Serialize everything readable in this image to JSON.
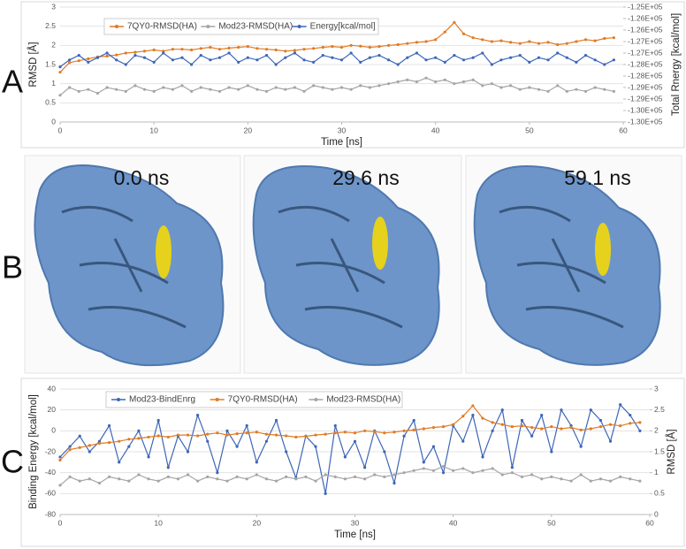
{
  "panel_labels": [
    "A",
    "B",
    "C"
  ],
  "snapshots": [
    "0.0 ns",
    "29.6 ns",
    "59.1 ns"
  ],
  "chart_data": [
    {
      "type": "line",
      "xlabel": "Time [ns]",
      "ylabel": "RMSD [Å]",
      "y2label": "Total Rnergy [kcal/mol]",
      "xlim": [
        0,
        60
      ],
      "xticks": [
        0,
        10,
        20,
        30,
        40,
        50,
        60
      ],
      "ylim": [
        0,
        3
      ],
      "yticks": [
        0,
        0.5,
        1,
        1.5,
        2,
        2.5,
        3
      ],
      "y2lim": [
        -130000,
        -125000
      ],
      "y2ticks": [
        {
          "value": -130000,
          "label": "-1.30E+05"
        },
        {
          "value": -129500,
          "label": "-1.30E+05"
        },
        {
          "value": -129000,
          "label": "-1.29E+05"
        },
        {
          "value": -128500,
          "label": "-1.29E+05"
        },
        {
          "value": -128000,
          "label": "-1.28E+05"
        },
        {
          "value": -127500,
          "label": "-1.28E+05"
        },
        {
          "value": -127000,
          "label": "-1.27E+05"
        },
        {
          "value": -126500,
          "label": "-1.27E+05"
        },
        {
          "value": -126000,
          "label": "-1.26E+05"
        },
        {
          "value": -125500,
          "label": "-1.26E+05"
        },
        {
          "value": -125000,
          "label": "-1.25E+05"
        }
      ],
      "x": [
        0,
        1,
        2,
        3,
        4,
        5,
        6,
        7,
        8,
        9,
        10,
        11,
        12,
        13,
        14,
        15,
        16,
        17,
        18,
        19,
        20,
        21,
        22,
        23,
        24,
        25,
        26,
        27,
        28,
        29,
        30,
        31,
        32,
        33,
        34,
        35,
        36,
        37,
        38,
        39,
        40,
        41,
        42,
        43,
        44,
        45,
        46,
        47,
        48,
        49,
        50,
        51,
        52,
        53,
        54,
        55,
        56,
        57,
        58,
        59
      ],
      "series": [
        {
          "name": "7QY0-RMSD(HA)",
          "color": "#e07b24",
          "values": [
            1.3,
            1.55,
            1.6,
            1.65,
            1.7,
            1.72,
            1.75,
            1.8,
            1.82,
            1.85,
            1.88,
            1.85,
            1.9,
            1.9,
            1.88,
            1.92,
            1.95,
            1.9,
            1.93,
            1.95,
            1.97,
            1.92,
            1.9,
            1.88,
            1.85,
            1.87,
            1.9,
            1.92,
            1.95,
            1.97,
            1.95,
            2.0,
            1.98,
            1.95,
            1.97,
            2.0,
            2.02,
            2.05,
            2.08,
            2.1,
            2.15,
            2.35,
            2.6,
            2.3,
            2.2,
            2.15,
            2.1,
            2.12,
            2.08,
            2.05,
            2.1,
            2.05,
            2.08,
            2.02,
            2.05,
            2.1,
            2.15,
            2.12,
            2.18,
            2.2
          ]
        },
        {
          "name": "Mod23-RMSD(HA)",
          "color": "#a5a5a5",
          "values": [
            0.7,
            0.9,
            0.8,
            0.85,
            0.75,
            0.9,
            0.85,
            0.8,
            0.95,
            0.85,
            0.8,
            0.9,
            0.85,
            0.95,
            0.8,
            0.9,
            0.85,
            0.8,
            0.9,
            0.85,
            0.95,
            0.85,
            0.8,
            0.9,
            0.85,
            0.9,
            0.8,
            0.95,
            0.9,
            0.85,
            0.9,
            0.85,
            0.95,
            0.9,
            0.95,
            1.0,
            1.05,
            1.1,
            1.05,
            1.15,
            1.05,
            1.1,
            1.0,
            1.05,
            1.1,
            0.95,
            1.0,
            0.9,
            0.95,
            0.85,
            0.9,
            0.85,
            0.8,
            0.95,
            0.8,
            0.85,
            0.8,
            0.9,
            0.85,
            0.8
          ]
        },
        {
          "name": "Energy[kcal/mol]",
          "color": "#3d66b8",
          "axis": "y2",
          "values": [
            -127600,
            -127300,
            -127100,
            -127400,
            -127200,
            -127000,
            -127300,
            -127500,
            -127100,
            -127200,
            -127400,
            -127000,
            -127300,
            -127200,
            -127500,
            -127100,
            -127300,
            -127200,
            -127000,
            -127400,
            -127200,
            -127300,
            -127100,
            -127500,
            -127200,
            -127000,
            -127300,
            -127400,
            -127100,
            -127200,
            -127300,
            -127000,
            -127400,
            -127200,
            -127100,
            -127300,
            -127500,
            -127200,
            -127000,
            -127300,
            -127200,
            -127400,
            -127100,
            -127300,
            -127200,
            -127000,
            -127500,
            -127300,
            -127200,
            -127100,
            -127400,
            -127200,
            -127300,
            -127000,
            -127200,
            -127400,
            -127100,
            -127300,
            -127500,
            -127300
          ]
        }
      ]
    },
    {
      "type": "line",
      "xlabel": "Time [ns]",
      "ylabel": "Binding Energy [kcal/mol]",
      "y2label": "RMSD [Å]",
      "xlim": [
        0,
        60
      ],
      "xticks": [
        0,
        10,
        20,
        30,
        40,
        50,
        60
      ],
      "ylim": [
        -80,
        40
      ],
      "yticks": [
        -80,
        -60,
        -40,
        -20,
        0,
        20,
        40
      ],
      "y2lim": [
        0,
        3
      ],
      "y2ticks": [
        0,
        0.5,
        1,
        1.5,
        2,
        2.5,
        3
      ],
      "x": [
        0,
        1,
        2,
        3,
        4,
        5,
        6,
        7,
        8,
        9,
        10,
        11,
        12,
        13,
        14,
        15,
        16,
        17,
        18,
        19,
        20,
        21,
        22,
        23,
        24,
        25,
        26,
        27,
        28,
        29,
        30,
        31,
        32,
        33,
        34,
        35,
        36,
        37,
        38,
        39,
        40,
        41,
        42,
        43,
        44,
        45,
        46,
        47,
        48,
        49,
        50,
        51,
        52,
        53,
        54,
        55,
        56,
        57,
        58,
        59
      ],
      "series": [
        {
          "name": "Mod23-BindEnrg",
          "color": "#3d66b8",
          "values": [
            -25,
            -15,
            -5,
            -20,
            -10,
            5,
            -30,
            -15,
            0,
            -25,
            10,
            -35,
            -5,
            -20,
            15,
            -10,
            -40,
            0,
            -15,
            5,
            -30,
            -10,
            10,
            -20,
            -45,
            -5,
            -15,
            -60,
            5,
            -25,
            -10,
            -35,
            0,
            -20,
            -50,
            -5,
            10,
            -30,
            -15,
            -40,
            5,
            -10,
            15,
            -25,
            0,
            20,
            -35,
            10,
            -5,
            15,
            -20,
            20,
            5,
            -15,
            20,
            10,
            -10,
            25,
            15,
            0
          ]
        },
        {
          "name": "7QY0-RMSD(HA)",
          "color": "#e07b24",
          "axis": "y2",
          "values": [
            1.3,
            1.55,
            1.6,
            1.65,
            1.7,
            1.72,
            1.75,
            1.8,
            1.82,
            1.85,
            1.88,
            1.85,
            1.9,
            1.9,
            1.88,
            1.92,
            1.95,
            1.9,
            1.93,
            1.95,
            1.97,
            1.92,
            1.9,
            1.88,
            1.85,
            1.87,
            1.9,
            1.92,
            1.95,
            1.97,
            1.95,
            2.0,
            1.98,
            1.95,
            1.97,
            2.0,
            2.02,
            2.05,
            2.08,
            2.1,
            2.15,
            2.35,
            2.6,
            2.3,
            2.2,
            2.15,
            2.1,
            2.12,
            2.08,
            2.05,
            2.1,
            2.05,
            2.08,
            2.02,
            2.05,
            2.1,
            2.15,
            2.12,
            2.18,
            2.2
          ]
        },
        {
          "name": "Mod23-RMSD(HA)",
          "color": "#a5a5a5",
          "axis": "y2",
          "values": [
            0.7,
            0.9,
            0.8,
            0.85,
            0.75,
            0.9,
            0.85,
            0.8,
            0.95,
            0.85,
            0.8,
            0.9,
            0.85,
            0.95,
            0.8,
            0.9,
            0.85,
            0.8,
            0.9,
            0.85,
            0.95,
            0.85,
            0.8,
            0.9,
            0.85,
            0.9,
            0.8,
            0.95,
            0.9,
            0.85,
            0.9,
            0.85,
            0.95,
            0.9,
            0.95,
            1.0,
            1.05,
            1.1,
            1.05,
            1.15,
            1.05,
            1.1,
            1.0,
            1.05,
            1.1,
            0.95,
            1.0,
            0.9,
            0.95,
            0.85,
            0.9,
            0.85,
            0.8,
            0.95,
            0.8,
            0.85,
            0.8,
            0.9,
            0.85,
            0.8
          ]
        }
      ]
    }
  ]
}
